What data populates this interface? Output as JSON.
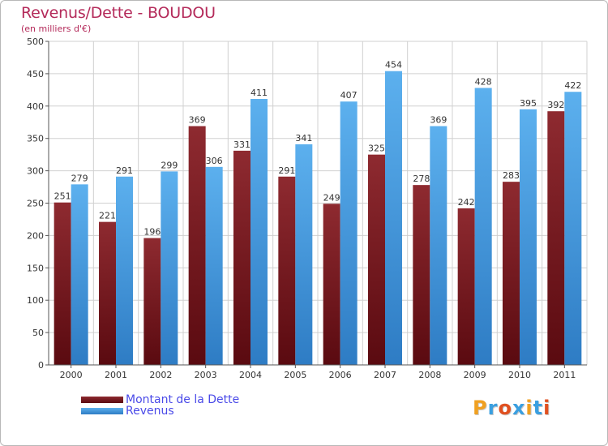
{
  "header": {
    "title": "Revenus/Dette - BOUDOU",
    "subtitle": "(en milliers d'€)"
  },
  "colors": {
    "dette": "#7a1c22",
    "revenus": "#4c9fe0",
    "title": "#b42a5a",
    "legend_text": "#4a4ae8",
    "grid": "#d0d0d0",
    "axis_text": "#333333"
  },
  "logo": {
    "text": "Proxiti",
    "letter_colors": [
      "#f0a020",
      "#3a9fe0",
      "#e05020",
      "#3a9fe0",
      "#f0a020",
      "#3a9fe0",
      "#e05020"
    ]
  },
  "chart_data": {
    "type": "bar",
    "categories": [
      "2000",
      "2001",
      "2002",
      "2003",
      "2004",
      "2005",
      "2006",
      "2007",
      "2008",
      "2009",
      "2010",
      "2011"
    ],
    "series": [
      {
        "name": "Montant de la Dette",
        "values": [
          251,
          221,
          196,
          369,
          331,
          291,
          249,
          325,
          278,
          242,
          283,
          392
        ]
      },
      {
        "name": "Revenus",
        "values": [
          279,
          291,
          299,
          306,
          411,
          341,
          407,
          454,
          369,
          428,
          395,
          422
        ]
      }
    ],
    "ylim": [
      0,
      500
    ],
    "yticks": [
      0,
      50,
      100,
      150,
      200,
      250,
      300,
      350,
      400,
      450,
      500
    ],
    "grid": true,
    "legend": "bottom-left"
  }
}
